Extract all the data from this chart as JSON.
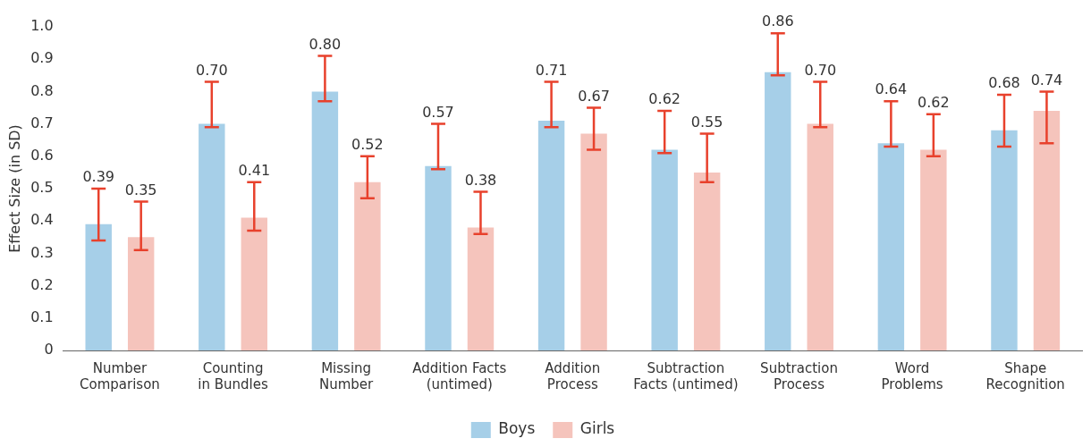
{
  "chart_data": {
    "type": "bar",
    "ylabel": "Effect Size (in SD)",
    "categories": [
      "Number Comparison",
      "Counting in Bundles",
      "Missing Number",
      "Addition Facts (untimed)",
      "Addition Process",
      "Subtraction Facts (untimed)",
      "Subtraction Process",
      "Word Problems",
      "Shape Recognition"
    ],
    "series": [
      {
        "name": "Boys",
        "color": "#a6cfe8",
        "values": [
          0.39,
          0.7,
          0.8,
          0.57,
          0.71,
          0.62,
          0.86,
          0.64,
          0.68
        ],
        "value_labels": [
          "0.39",
          "0.70",
          "0.80",
          "0.57",
          "0.71",
          "0.62",
          "0.86",
          "0.64",
          "0.68"
        ],
        "errors": [
          [
            0.34,
            0.5
          ],
          [
            0.69,
            0.83
          ],
          [
            0.77,
            0.91
          ],
          [
            0.56,
            0.7
          ],
          [
            0.69,
            0.83
          ],
          [
            0.61,
            0.74
          ],
          [
            0.85,
            0.98
          ],
          [
            0.63,
            0.77
          ],
          [
            0.63,
            0.79
          ]
        ]
      },
      {
        "name": "Girls",
        "color": "#f5c4bc",
        "values": [
          0.35,
          0.41,
          0.52,
          0.38,
          0.67,
          0.55,
          0.7,
          0.62,
          0.74
        ],
        "value_labels": [
          "0.35",
          "0.41",
          "0.52",
          "0.38",
          "0.67",
          "0.55",
          "0.70",
          "0.62",
          "0.74"
        ],
        "errors": [
          [
            0.31,
            0.46
          ],
          [
            0.37,
            0.52
          ],
          [
            0.47,
            0.6
          ],
          [
            0.36,
            0.49
          ],
          [
            0.62,
            0.75
          ],
          [
            0.52,
            0.67
          ],
          [
            0.69,
            0.83
          ],
          [
            0.6,
            0.73
          ],
          [
            0.64,
            0.8
          ]
        ]
      }
    ],
    "ylim": [
      0,
      1
    ],
    "yticks": [
      0,
      0.1,
      0.2,
      0.3,
      0.4,
      0.5,
      0.6,
      0.7,
      0.8,
      0.9,
      {
        "value": 1,
        "label": "1.0"
      }
    ],
    "grid": false,
    "legend": "bottom"
  }
}
